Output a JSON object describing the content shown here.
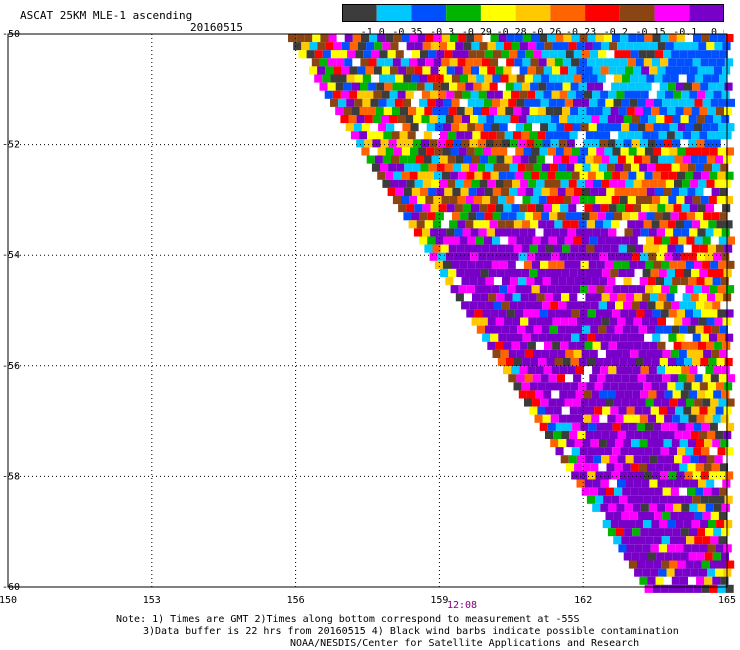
{
  "header": {
    "title": "ASCAT 25KM MLE-1 ascending",
    "date": "20160515"
  },
  "colorbar": {
    "colors": [
      "#3c3c3c",
      "#00c8ff",
      "#0050ff",
      "#00b400",
      "#ffff00",
      "#ffc800",
      "#ff6400",
      "#ff0000",
      "#8b4513",
      "#ff00ff",
      "#7800c8"
    ],
    "labels": [
      "-1.0",
      "-0.35",
      "-0.3",
      "-0.29",
      "-0.28",
      "-0.26",
      "-0.23",
      "-0.2",
      "-0.15",
      "-0.1",
      "0.0"
    ]
  },
  "axes": {
    "lon_ticks": [
      "150",
      "153",
      "156",
      "159",
      "162",
      "165"
    ],
    "lat_ticks": [
      "-50",
      "-52",
      "-54",
      "-56",
      "-58",
      "-60"
    ],
    "time_label": "12:08"
  },
  "notes": {
    "line1": "Note: 1) Times are GMT 2)Times along bottom correspond to measurement at -55S",
    "line2": "3)Data buffer is 22 hrs from 20160515 4) Black wind barbs indicate possible contamination",
    "line3": "NOAA/NESDIS/Center for Satellite Applications and Research"
  }
}
